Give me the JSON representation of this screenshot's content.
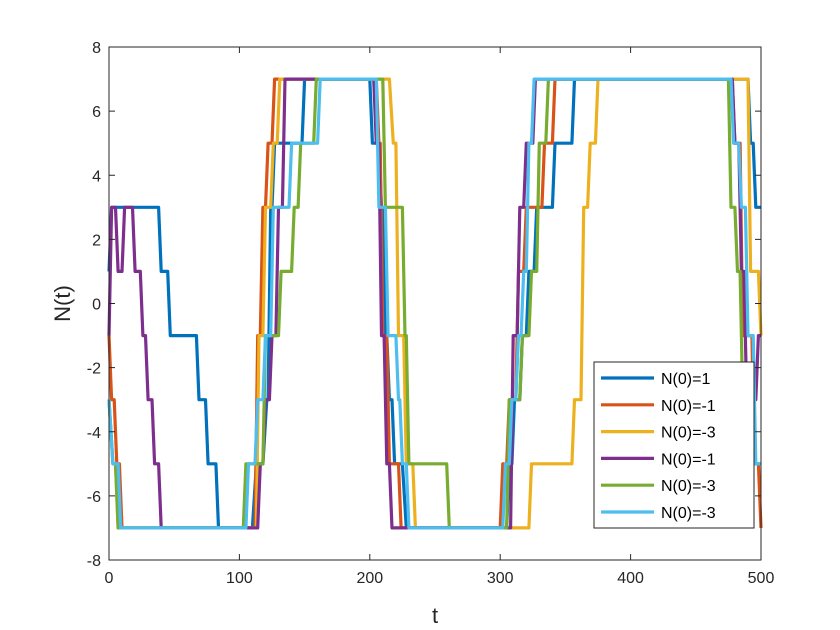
{
  "chart_data": {
    "type": "line",
    "title": "",
    "xlabel": "t",
    "ylabel": "N(t)",
    "xlim": [
      0,
      500
    ],
    "ylim": [
      -8,
      8
    ],
    "xticks": [
      0,
      100,
      200,
      300,
      400,
      500
    ],
    "yticks": [
      -8,
      -6,
      -4,
      -2,
      0,
      2,
      4,
      6,
      8
    ],
    "grid": false,
    "legend_position": "bottom-right",
    "series": [
      {
        "name": "N(0)=1",
        "color": "#0072BD",
        "steps": [
          [
            0,
            1
          ],
          [
            2,
            3
          ],
          [
            38,
            3
          ],
          [
            40,
            1
          ],
          [
            45,
            1
          ],
          [
            47,
            -1
          ],
          [
            67,
            -1
          ],
          [
            69,
            -3
          ],
          [
            74,
            -3
          ],
          [
            76,
            -5
          ],
          [
            82,
            -5
          ],
          [
            84,
            -7
          ],
          [
            110,
            -7
          ],
          [
            113,
            -5
          ],
          [
            118,
            -5
          ],
          [
            121,
            -3
          ],
          [
            122,
            -3
          ],
          [
            124,
            3
          ],
          [
            125,
            3
          ],
          [
            127,
            5
          ],
          [
            148,
            5
          ],
          [
            150,
            7
          ],
          [
            200,
            7
          ],
          [
            202,
            5
          ],
          [
            207,
            5
          ],
          [
            209,
            3
          ],
          [
            210,
            3
          ],
          [
            212,
            -1
          ],
          [
            213,
            -1
          ],
          [
            215,
            -3
          ],
          [
            217,
            -3
          ],
          [
            219,
            -5
          ],
          [
            225,
            -5
          ],
          [
            228,
            -7
          ],
          [
            305,
            -7
          ],
          [
            307,
            -5
          ],
          [
            309,
            -5
          ],
          [
            311,
            -3
          ],
          [
            315,
            -3
          ],
          [
            317,
            -1
          ],
          [
            320,
            -1
          ],
          [
            322,
            1
          ],
          [
            326,
            1
          ],
          [
            328,
            3
          ],
          [
            340,
            3
          ],
          [
            342,
            5
          ],
          [
            355,
            5
          ],
          [
            357,
            7
          ],
          [
            490,
            7
          ],
          [
            492,
            5
          ],
          [
            494,
            5
          ],
          [
            496,
            3
          ],
          [
            500,
            3
          ]
        ]
      },
      {
        "name": "N(0)=-1",
        "color": "#D95319",
        "steps": [
          [
            0,
            -1
          ],
          [
            2,
            -3
          ],
          [
            4,
            -3
          ],
          [
            6,
            -5
          ],
          [
            8,
            -5
          ],
          [
            10,
            -7
          ],
          [
            112,
            -7
          ],
          [
            114,
            -1
          ],
          [
            116,
            -1
          ],
          [
            118,
            3
          ],
          [
            120,
            3
          ],
          [
            122,
            5
          ],
          [
            125,
            5
          ],
          [
            127,
            7
          ],
          [
            205,
            7
          ],
          [
            207,
            5
          ],
          [
            208,
            5
          ],
          [
            210,
            -1
          ],
          [
            213,
            -1
          ],
          [
            215,
            -5
          ],
          [
            222,
            -5
          ],
          [
            224,
            -7
          ],
          [
            300,
            -7
          ],
          [
            302,
            -5
          ],
          [
            305,
            -5
          ],
          [
            307,
            -3
          ],
          [
            312,
            -3
          ],
          [
            314,
            1
          ],
          [
            318,
            1
          ],
          [
            320,
            3
          ],
          [
            332,
            3
          ],
          [
            334,
            5
          ],
          [
            340,
            5
          ],
          [
            342,
            7
          ],
          [
            478,
            7
          ],
          [
            480,
            5
          ],
          [
            484,
            5
          ],
          [
            486,
            -1
          ],
          [
            493,
            -1
          ],
          [
            495,
            -5
          ],
          [
            498,
            -5
          ],
          [
            500,
            -7
          ]
        ]
      },
      {
        "name": "N(0)=-3",
        "color": "#EDB120",
        "steps": [
          [
            0,
            -3
          ],
          [
            3,
            -5
          ],
          [
            5,
            -5
          ],
          [
            7,
            -7
          ],
          [
            113,
            -7
          ],
          [
            115,
            -1
          ],
          [
            118,
            -1
          ],
          [
            120,
            3
          ],
          [
            124,
            3
          ],
          [
            126,
            5
          ],
          [
            129,
            5
          ],
          [
            131,
            7
          ],
          [
            215,
            7
          ],
          [
            218,
            5
          ],
          [
            220,
            5
          ],
          [
            222,
            -1
          ],
          [
            226,
            -1
          ],
          [
            228,
            -5
          ],
          [
            233,
            -5
          ],
          [
            235,
            -7
          ],
          [
            322,
            -7
          ],
          [
            324,
            -5
          ],
          [
            355,
            -5
          ],
          [
            357,
            -3
          ],
          [
            362,
            -3
          ],
          [
            364,
            3
          ],
          [
            367,
            3
          ],
          [
            369,
            5
          ],
          [
            373,
            5
          ],
          [
            375,
            7
          ],
          [
            490,
            7
          ],
          [
            492,
            1
          ],
          [
            498,
            1
          ],
          [
            500,
            -1
          ]
        ]
      },
      {
        "name": "N(0)=-1",
        "color": "#7E2F8E",
        "steps": [
          [
            0,
            -1
          ],
          [
            2,
            3
          ],
          [
            5,
            3
          ],
          [
            7,
            1
          ],
          [
            10,
            1
          ],
          [
            12,
            3
          ],
          [
            18,
            3
          ],
          [
            20,
            1
          ],
          [
            24,
            1
          ],
          [
            26,
            -1
          ],
          [
            28,
            -1
          ],
          [
            30,
            -3
          ],
          [
            33,
            -3
          ],
          [
            35,
            -5
          ],
          [
            38,
            -5
          ],
          [
            40,
            -7
          ],
          [
            114,
            -7
          ],
          [
            116,
            -5
          ],
          [
            118,
            -5
          ],
          [
            120,
            -3
          ],
          [
            123,
            -3
          ],
          [
            125,
            -1
          ],
          [
            128,
            -1
          ],
          [
            130,
            3
          ],
          [
            133,
            3
          ],
          [
            135,
            7
          ],
          [
            203,
            7
          ],
          [
            205,
            5
          ],
          [
            207,
            5
          ],
          [
            209,
            -1
          ],
          [
            211,
            -1
          ],
          [
            213,
            -5
          ],
          [
            215,
            -5
          ],
          [
            217,
            -7
          ],
          [
            308,
            -7
          ],
          [
            310,
            -1
          ],
          [
            313,
            -1
          ],
          [
            315,
            3
          ],
          [
            318,
            3
          ],
          [
            320,
            5
          ],
          [
            325,
            5
          ],
          [
            327,
            7
          ],
          [
            478,
            7
          ],
          [
            480,
            5
          ],
          [
            483,
            5
          ],
          [
            485,
            1
          ],
          [
            487,
            1
          ],
          [
            489,
            -3
          ],
          [
            496,
            -3
          ],
          [
            498,
            -1
          ],
          [
            500,
            -1
          ]
        ]
      },
      {
        "name": "N(0)=-3",
        "color": "#77AC30",
        "steps": [
          [
            0,
            -3
          ],
          [
            3,
            -5
          ],
          [
            5,
            -5
          ],
          [
            7,
            -7
          ],
          [
            103,
            -7
          ],
          [
            105,
            -5
          ],
          [
            118,
            -5
          ],
          [
            120,
            -1
          ],
          [
            130,
            -1
          ],
          [
            132,
            1
          ],
          [
            140,
            1
          ],
          [
            142,
            3
          ],
          [
            145,
            3
          ],
          [
            147,
            5
          ],
          [
            157,
            5
          ],
          [
            159,
            7
          ],
          [
            210,
            7
          ],
          [
            212,
            3
          ],
          [
            225,
            3
          ],
          [
            227,
            -1
          ],
          [
            228,
            -1
          ],
          [
            230,
            -5
          ],
          [
            259,
            -5
          ],
          [
            261,
            -7
          ],
          [
            305,
            -7
          ],
          [
            307,
            -3
          ],
          [
            315,
            -3
          ],
          [
            317,
            -1
          ],
          [
            322,
            -1
          ],
          [
            324,
            1
          ],
          [
            328,
            1
          ],
          [
            330,
            5
          ],
          [
            335,
            5
          ],
          [
            337,
            7
          ],
          [
            475,
            7
          ],
          [
            477,
            3
          ],
          [
            480,
            3
          ],
          [
            482,
            1
          ],
          [
            484,
            1
          ],
          [
            486,
            -3
          ],
          [
            488,
            -3
          ],
          [
            490,
            -5
          ],
          [
            500,
            -5
          ]
        ]
      },
      {
        "name": "N(0)=-3",
        "color": "#4DBEEE",
        "steps": [
          [
            0,
            -3
          ],
          [
            3,
            -5
          ],
          [
            7,
            -5
          ],
          [
            9,
            -7
          ],
          [
            105,
            -7
          ],
          [
            107,
            -5
          ],
          [
            112,
            -5
          ],
          [
            114,
            -3
          ],
          [
            118,
            -3
          ],
          [
            120,
            -1
          ],
          [
            124,
            -1
          ],
          [
            126,
            3
          ],
          [
            138,
            3
          ],
          [
            140,
            5
          ],
          [
            160,
            5
          ],
          [
            162,
            7
          ],
          [
            205,
            7
          ],
          [
            207,
            3
          ],
          [
            212,
            3
          ],
          [
            214,
            -1
          ],
          [
            220,
            -1
          ],
          [
            222,
            -3
          ],
          [
            223,
            -3
          ],
          [
            225,
            -5
          ],
          [
            228,
            -5
          ],
          [
            230,
            -7
          ],
          [
            302,
            -7
          ],
          [
            304,
            -5
          ],
          [
            307,
            -5
          ],
          [
            309,
            -3
          ],
          [
            312,
            -3
          ],
          [
            314,
            -1
          ],
          [
            316,
            -1
          ],
          [
            318,
            1
          ],
          [
            320,
            1
          ],
          [
            322,
            5
          ],
          [
            324,
            5
          ],
          [
            326,
            7
          ],
          [
            477,
            7
          ],
          [
            479,
            5
          ],
          [
            483,
            5
          ],
          [
            485,
            3
          ],
          [
            488,
            3
          ],
          [
            490,
            -1
          ],
          [
            494,
            -1
          ],
          [
            496,
            -5
          ],
          [
            500,
            -5
          ]
        ]
      }
    ]
  }
}
